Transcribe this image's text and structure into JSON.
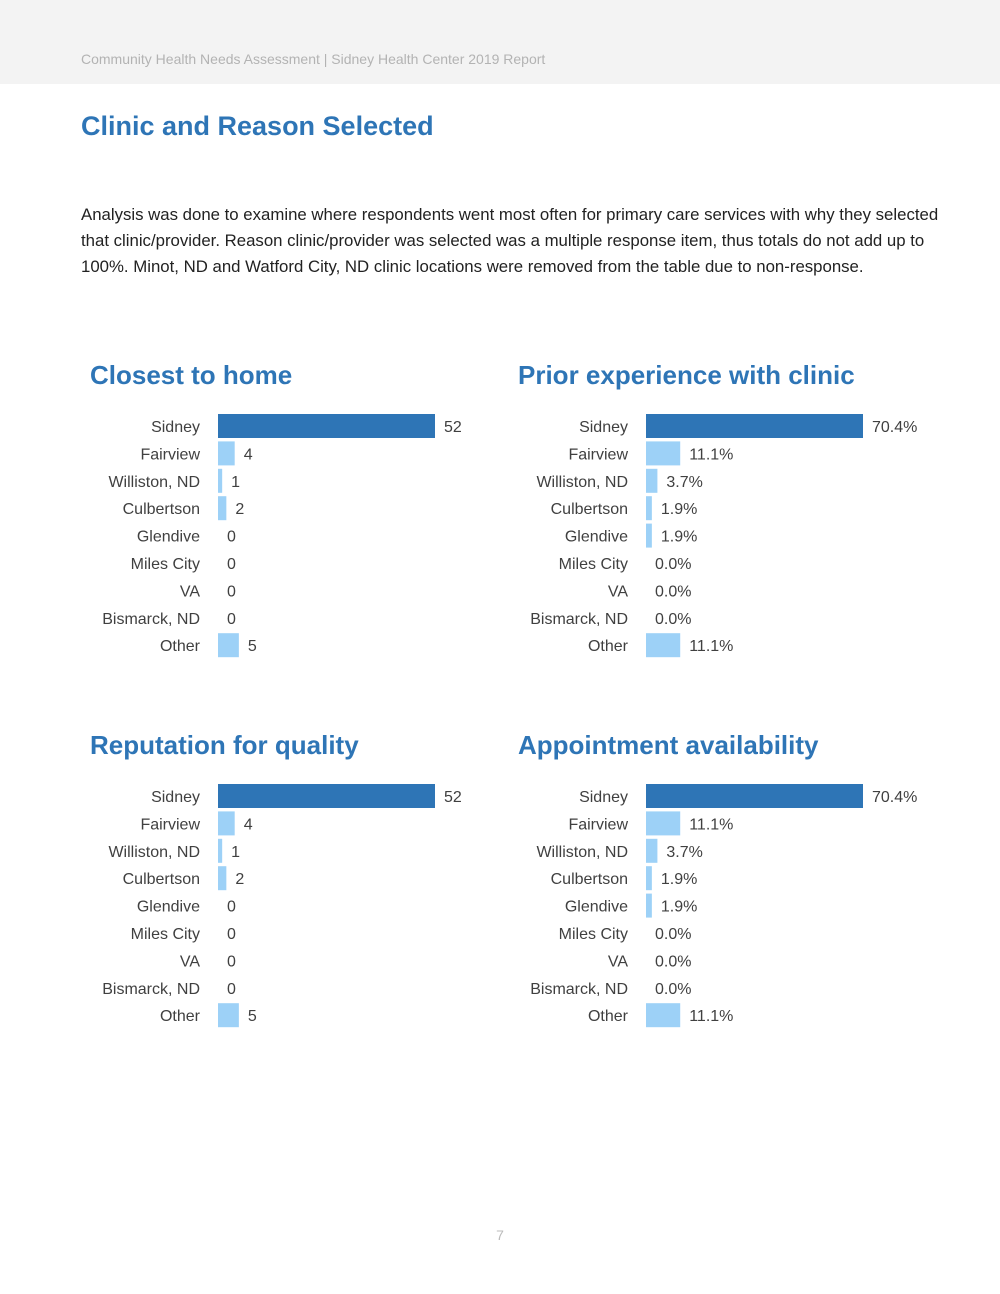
{
  "header": {
    "running_head": "Community Health Needs Assessment | Sidney Health Center 2019 Report"
  },
  "page": {
    "title": "Clinic and Reason Selected",
    "intro": "Analysis was done to examine where respondents went most often for primary care services with why they selected that clinic/provider. Reason clinic/provider was selected was a multiple response item, thus totals do not add up to 100%. Minot, ND and Watford City, ND clinic locations were removed from the table due to non-response.",
    "page_number": "7"
  },
  "colors": {
    "primary_bar": "#2e75b6",
    "secondary_bar": "#9dd1f7",
    "title": "#2e75b6"
  },
  "chart_data": [
    {
      "type": "bar",
      "orientation": "horizontal",
      "title": "Closest to home",
      "categories": [
        "Sidney",
        "Fairview",
        "Williston, ND",
        "Culbertson",
        "Glendive",
        "Miles City",
        "VA",
        "Bismarck, ND",
        "Other"
      ],
      "values": [
        52,
        4,
        1,
        2,
        0,
        0,
        0,
        0,
        5
      ],
      "labels": [
        "52",
        "4",
        "1",
        "2",
        "0",
        "0",
        "0",
        "0",
        "5"
      ],
      "xlim": [
        0,
        52
      ]
    },
    {
      "type": "bar",
      "orientation": "horizontal",
      "title": "Prior experience with clinic",
      "categories": [
        "Sidney",
        "Fairview",
        "Williston, ND",
        "Culbertson",
        "Glendive",
        "Miles City",
        "VA",
        "Bismarck, ND",
        "Other"
      ],
      "values": [
        70.4,
        11.1,
        3.7,
        1.9,
        1.9,
        0.0,
        0.0,
        0.0,
        11.1
      ],
      "labels": [
        "70.4%",
        "11.1%",
        "3.7%",
        "1.9%",
        "1.9%",
        "0.0%",
        "0.0%",
        "0.0%",
        "11.1%"
      ],
      "xlim": [
        0,
        70.4
      ]
    },
    {
      "type": "bar",
      "orientation": "horizontal",
      "title": "Reputation for quality",
      "categories": [
        "Sidney",
        "Fairview",
        "Williston, ND",
        "Culbertson",
        "Glendive",
        "Miles City",
        "VA",
        "Bismarck, ND",
        "Other"
      ],
      "values": [
        52,
        4,
        1,
        2,
        0,
        0,
        0,
        0,
        5
      ],
      "labels": [
        "52",
        "4",
        "1",
        "2",
        "0",
        "0",
        "0",
        "0",
        "5"
      ],
      "xlim": [
        0,
        52
      ]
    },
    {
      "type": "bar",
      "orientation": "horizontal",
      "title": "Appointment availability",
      "categories": [
        "Sidney",
        "Fairview",
        "Williston, ND",
        "Culbertson",
        "Glendive",
        "Miles City",
        "VA",
        "Bismarck, ND",
        "Other"
      ],
      "values": [
        70.4,
        11.1,
        3.7,
        1.9,
        1.9,
        0.0,
        0.0,
        0.0,
        11.1
      ],
      "labels": [
        "70.4%",
        "11.1%",
        "3.7%",
        "1.9%",
        "1.9%",
        "0.0%",
        "0.0%",
        "0.0%",
        "11.1%"
      ],
      "xlim": [
        0,
        70.4
      ]
    }
  ]
}
